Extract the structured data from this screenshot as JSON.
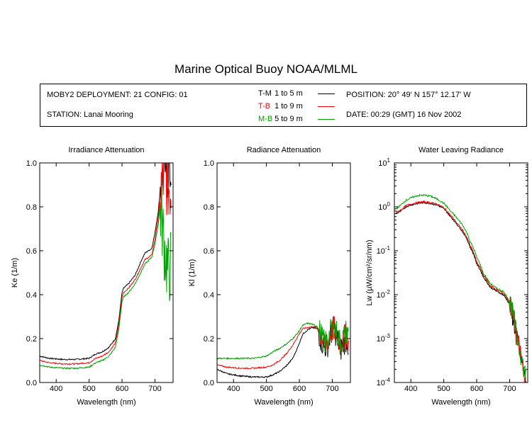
{
  "page": {
    "title": "Marine Optical Buoy NOAA/MLML",
    "deployment": "MOBY2 DEPLOYMENT: 21 CONFIG: 01",
    "station": "STATION: Lanai Mooring",
    "position": "POSITION: 20° 49' N   157° 12.17' W",
    "date": "DATE: 00:29 (GMT) 16 Nov 2002",
    "legend": [
      {
        "code": "T-M",
        "range": "1 to 5  m",
        "color": "#000000"
      },
      {
        "code": "T-B",
        "range": "1 to 9  m",
        "color": "#ff0000"
      },
      {
        "code": "M-B",
        "range": "5 to 9  m",
        "color": "#00a000"
      }
    ]
  },
  "chart_data": [
    {
      "type": "line",
      "title": "Irradiance Attenuation",
      "xlabel": "Wavelength (nm)",
      "ylabel": "Ke  (1/m)",
      "xlim": [
        350,
        755
      ],
      "ylim": [
        0,
        1.0
      ],
      "xticks": [
        400,
        500,
        600,
        700
      ],
      "yticks": [
        0.0,
        0.2,
        0.4,
        0.6,
        0.8,
        1.0
      ],
      "ytick_labels": [
        "0.0",
        "0.2",
        "0.4",
        "0.6",
        "0.8",
        "1.0"
      ],
      "noise_from": 715,
      "series": [
        {
          "name": "T-M",
          "color": "#000000",
          "x": [
            350,
            380,
            420,
            460,
            500,
            520,
            540,
            560,
            580,
            590,
            600,
            605,
            620,
            640,
            660,
            670,
            690,
            700,
            710,
            715,
            720,
            730,
            740,
            750
          ],
          "y": [
            0.12,
            0.11,
            0.105,
            0.105,
            0.11,
            0.13,
            0.14,
            0.16,
            0.2,
            0.28,
            0.41,
            0.43,
            0.45,
            0.49,
            0.56,
            0.59,
            0.61,
            0.68,
            0.78,
            0.86,
            0.95,
            1.0,
            0.98,
            0.96
          ]
        },
        {
          "name": "T-B",
          "color": "#ff0000",
          "x": [
            350,
            380,
            420,
            460,
            500,
            520,
            540,
            560,
            580,
            590,
            600,
            605,
            620,
            640,
            660,
            670,
            690,
            700,
            710,
            715,
            720,
            730,
            740,
            750
          ],
          "y": [
            0.1,
            0.09,
            0.085,
            0.085,
            0.09,
            0.11,
            0.12,
            0.14,
            0.18,
            0.26,
            0.39,
            0.41,
            0.43,
            0.47,
            0.53,
            0.56,
            0.58,
            0.65,
            0.75,
            0.83,
            0.9,
            0.95,
            0.9,
            0.88
          ]
        },
        {
          "name": "M-B",
          "color": "#00a000",
          "x": [
            350,
            380,
            420,
            460,
            500,
            520,
            540,
            560,
            580,
            590,
            600,
            605,
            620,
            640,
            660,
            670,
            690,
            700,
            710,
            715,
            720,
            730,
            740,
            750
          ],
          "y": [
            0.08,
            0.07,
            0.065,
            0.065,
            0.07,
            0.09,
            0.1,
            0.12,
            0.16,
            0.24,
            0.37,
            0.39,
            0.41,
            0.45,
            0.51,
            0.54,
            0.57,
            0.63,
            0.72,
            0.8,
            0.75,
            0.6,
            0.5,
            0.55
          ]
        }
      ]
    },
    {
      "type": "line",
      "title": "Radiance Attenuation",
      "xlabel": "Wavelength (nm)",
      "ylabel": "Kl  (1/m)",
      "xlim": [
        350,
        755
      ],
      "ylim": [
        0,
        1.0
      ],
      "xticks": [
        400,
        500,
        600,
        700
      ],
      "yticks": [
        0.0,
        0.2,
        0.4,
        0.6,
        0.8,
        1.0
      ],
      "ytick_labels": [
        "0.0",
        "0.2",
        "0.4",
        "0.6",
        "0.8",
        "1.0"
      ],
      "noise_from": 660,
      "series": [
        {
          "name": "T-M",
          "color": "#000000",
          "x": [
            350,
            380,
            420,
            460,
            500,
            520,
            540,
            560,
            580,
            595,
            610,
            625,
            640,
            655,
            665,
            675,
            685,
            695,
            705,
            715,
            725,
            735,
            745,
            750
          ],
          "y": [
            0.06,
            0.04,
            0.03,
            0.025,
            0.025,
            0.035,
            0.05,
            0.075,
            0.11,
            0.16,
            0.22,
            0.24,
            0.25,
            0.245,
            0.2,
            0.16,
            0.17,
            0.22,
            0.25,
            0.2,
            0.15,
            0.18,
            0.2,
            0.15
          ]
        },
        {
          "name": "T-B",
          "color": "#ff0000",
          "x": [
            350,
            380,
            420,
            460,
            500,
            520,
            540,
            560,
            580,
            595,
            610,
            625,
            640,
            655,
            665,
            675,
            685,
            695,
            705,
            715,
            725,
            735,
            745,
            750
          ],
          "y": [
            0.08,
            0.07,
            0.065,
            0.065,
            0.07,
            0.08,
            0.1,
            0.13,
            0.17,
            0.21,
            0.245,
            0.25,
            0.255,
            0.25,
            0.21,
            0.17,
            0.18,
            0.22,
            0.25,
            0.21,
            0.17,
            0.2,
            0.22,
            0.18
          ]
        },
        {
          "name": "M-B",
          "color": "#00a000",
          "x": [
            350,
            380,
            420,
            460,
            500,
            520,
            540,
            560,
            580,
            595,
            610,
            625,
            640,
            655,
            665,
            675,
            685,
            695,
            705,
            715,
            725,
            735,
            745,
            750
          ],
          "y": [
            0.11,
            0.11,
            0.11,
            0.11,
            0.12,
            0.14,
            0.155,
            0.175,
            0.2,
            0.225,
            0.26,
            0.27,
            0.265,
            0.255,
            0.22,
            0.18,
            0.19,
            0.23,
            0.26,
            0.22,
            0.18,
            0.21,
            0.24,
            0.2
          ]
        }
      ]
    },
    {
      "type": "line",
      "title": "Water Leaving Radiance",
      "xlabel": "Wavelength (nm)",
      "ylabel": "Lw  (µW/cm²/sr/nm)",
      "scale": "log",
      "xlim": [
        350,
        755
      ],
      "ylim": [
        0.0001,
        10
      ],
      "xticks": [
        400,
        500,
        600,
        700
      ],
      "yticks": [
        0.0001,
        0.001,
        0.01,
        0.1,
        1,
        10
      ],
      "ytick_exponents": [
        "-4",
        "-3",
        "-2",
        "-1",
        "0",
        "1"
      ],
      "noise_from": 700,
      "series": [
        {
          "name": "T-M",
          "color": "#000000",
          "x": [
            355,
            370,
            385,
            400,
            420,
            440,
            460,
            480,
            500,
            520,
            540,
            560,
            580,
            600,
            620,
            640,
            660,
            680,
            700,
            710,
            720,
            730,
            740,
            750
          ],
          "y": [
            0.7,
            0.8,
            1.0,
            1.1,
            1.2,
            1.25,
            1.2,
            1.1,
            0.9,
            0.6,
            0.4,
            0.25,
            0.12,
            0.05,
            0.025,
            0.015,
            0.012,
            0.01,
            0.006,
            0.003,
            0.001,
            0.0005,
            0.0002,
            0.0001
          ]
        },
        {
          "name": "T-B",
          "color": "#ff0000",
          "x": [
            355,
            370,
            385,
            400,
            420,
            440,
            460,
            480,
            500,
            520,
            540,
            560,
            580,
            600,
            620,
            640,
            660,
            680,
            700,
            710,
            720,
            730,
            740,
            750
          ],
          "y": [
            0.75,
            0.85,
            1.05,
            1.15,
            1.25,
            1.3,
            1.25,
            1.15,
            0.95,
            0.65,
            0.42,
            0.27,
            0.13,
            0.055,
            0.028,
            0.016,
            0.013,
            0.011,
            0.0065,
            0.0032,
            0.0011,
            0.00055,
            0.00022,
            0.00011
          ]
        },
        {
          "name": "M-B",
          "color": "#00a000",
          "x": [
            355,
            370,
            385,
            400,
            420,
            440,
            460,
            480,
            500,
            520,
            540,
            560,
            580,
            600,
            620,
            640,
            660,
            680,
            700,
            710,
            720,
            730,
            740,
            750
          ],
          "y": [
            0.9,
            1.1,
            1.4,
            1.6,
            1.8,
            1.85,
            1.75,
            1.5,
            1.2,
            0.8,
            0.55,
            0.35,
            0.16,
            0.07,
            0.03,
            0.018,
            0.014,
            0.012,
            0.007,
            0.0035,
            0.0012,
            0.0006,
            0.00025,
            0.00012
          ]
        }
      ]
    }
  ]
}
